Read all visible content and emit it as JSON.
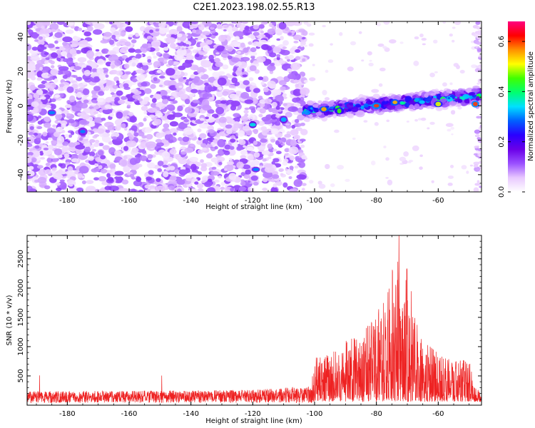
{
  "title": "C2E1.2023.198.02.55.R13",
  "chart_data": [
    {
      "type": "heatmap",
      "xlabel": "Height of straight line (km)",
      "ylabel": "Frequency (Hz)",
      "xlim": [
        -193,
        -46
      ],
      "ylim": [
        -50,
        49
      ],
      "x_ticks": [
        -180,
        -160,
        -140,
        -120,
        -100,
        -80,
        -60
      ],
      "y_ticks": [
        -40,
        -20,
        0,
        20,
        40
      ],
      "colorbar": {
        "label": "Normalized spectral amplitude",
        "range": [
          0,
          0.68
        ],
        "ticks": [
          0.0,
          0.2,
          0.4,
          0.6
        ],
        "colormap": [
          "#ffffff",
          "#e8c8ff",
          "#9a50ff",
          "#6a00e8",
          "#2a00ff",
          "#0060ff",
          "#00e0ff",
          "#00ff70",
          "#40ff00",
          "#ffff00",
          "#ff9000",
          "#ff0000",
          "#ff0080"
        ]
      },
      "noise_region_x": [
        -193,
        -103
      ],
      "signal_band": {
        "x_range": [
          -103,
          -46
        ],
        "center_freq_start": -3,
        "center_freq_end": 6,
        "halfwidth": 6
      },
      "bright_spots": [
        {
          "x": -185,
          "y": -4,
          "value": 0.3
        },
        {
          "x": -175,
          "y": -15,
          "value": 0.3
        },
        {
          "x": -120,
          "y": -11,
          "value": 0.35
        },
        {
          "x": -119,
          "y": -37,
          "value": 0.3
        },
        {
          "x": -110,
          "y": -8,
          "value": 0.32
        },
        {
          "x": -97,
          "y": -2,
          "value": 0.55
        },
        {
          "x": -92,
          "y": -3,
          "value": 0.45
        },
        {
          "x": -80,
          "y": 0,
          "value": 0.6
        },
        {
          "x": -74,
          "y": 2,
          "value": 0.55
        },
        {
          "x": -60,
          "y": 1,
          "value": 0.5
        },
        {
          "x": -48,
          "y": 1,
          "value": 0.6
        }
      ]
    },
    {
      "type": "line",
      "color": "#ee2222",
      "xlabel": "Height of straight line (km)",
      "ylabel": "SNR (10 * v/v)",
      "xlim": [
        -193,
        -46
      ],
      "ylim": [
        0,
        2900
      ],
      "x_ticks": [
        -180,
        -160,
        -140,
        -120,
        -100,
        -80,
        -60
      ],
      "y_ticks": [
        500,
        1000,
        1500,
        2000,
        2500
      ],
      "envelope": [
        {
          "x": -193,
          "y": 150
        },
        {
          "x": -120,
          "y": 170
        },
        {
          "x": -101,
          "y": 220
        },
        {
          "x": -100,
          "y": 650
        },
        {
          "x": -95,
          "y": 700
        },
        {
          "x": -90,
          "y": 900
        },
        {
          "x": -85,
          "y": 1000
        },
        {
          "x": -80,
          "y": 1300
        },
        {
          "x": -76,
          "y": 1900
        },
        {
          "x": -73,
          "y": 2300
        },
        {
          "x": -71,
          "y": 2200
        },
        {
          "x": -68,
          "y": 1500
        },
        {
          "x": -65,
          "y": 1000
        },
        {
          "x": -60,
          "y": 700
        },
        {
          "x": -55,
          "y": 600
        },
        {
          "x": -50,
          "y": 650
        },
        {
          "x": -48,
          "y": 200
        },
        {
          "x": -46,
          "y": 150
        }
      ]
    }
  ]
}
